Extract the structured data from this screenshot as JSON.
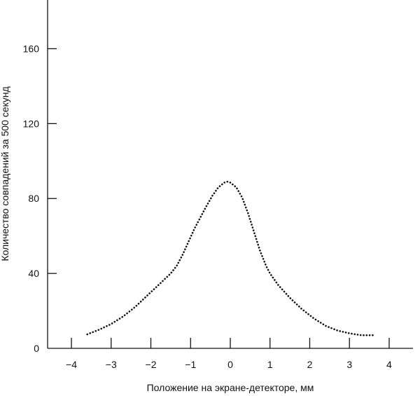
{
  "chart_data": {
    "type": "line",
    "title": "",
    "xlabel": "Положение на экране-детекторе, мм",
    "ylabel": "Количество совпадений за 500 секунд",
    "xlim": [
      -4.6,
      4.6
    ],
    "ylim": [
      0,
      186
    ],
    "xticks": [
      -4,
      -3,
      -2,
      -1,
      0,
      1,
      2,
      3,
      4
    ],
    "xtick_labels": [
      "−4",
      "−3",
      "−2",
      "−1",
      "0",
      "1",
      "2",
      "3",
      "4"
    ],
    "yticks": [
      0,
      40,
      80,
      120,
      160
    ],
    "ytick_labels": [
      "0",
      "40",
      "80",
      "120",
      "160"
    ],
    "grid": false,
    "legend": "none",
    "line_style": "dotted",
    "color": "#111111",
    "series": [
      {
        "x": [
          -3.6,
          -3.3,
          -3.0,
          -2.7,
          -2.4,
          -2.1,
          -1.8,
          -1.5,
          -1.35,
          -1.2,
          -1.05,
          -0.9,
          -0.75,
          -0.6,
          -0.45,
          -0.3,
          -0.15,
          -0.08,
          0.0,
          0.15,
          0.3,
          0.45,
          0.6,
          0.75,
          0.9,
          1.0,
          1.2,
          1.5,
          1.8,
          2.1,
          2.4,
          2.7,
          3.0,
          3.3,
          3.6
        ],
        "y": [
          7.5,
          10,
          13,
          17,
          22,
          28,
          34,
          40,
          44,
          50,
          57,
          64,
          70,
          76,
          81.5,
          86,
          88.5,
          89,
          88.5,
          86,
          80.5,
          72,
          62,
          52,
          44,
          40,
          34,
          27,
          21,
          16,
          12,
          9.5,
          8,
          7,
          7
        ]
      }
    ]
  }
}
